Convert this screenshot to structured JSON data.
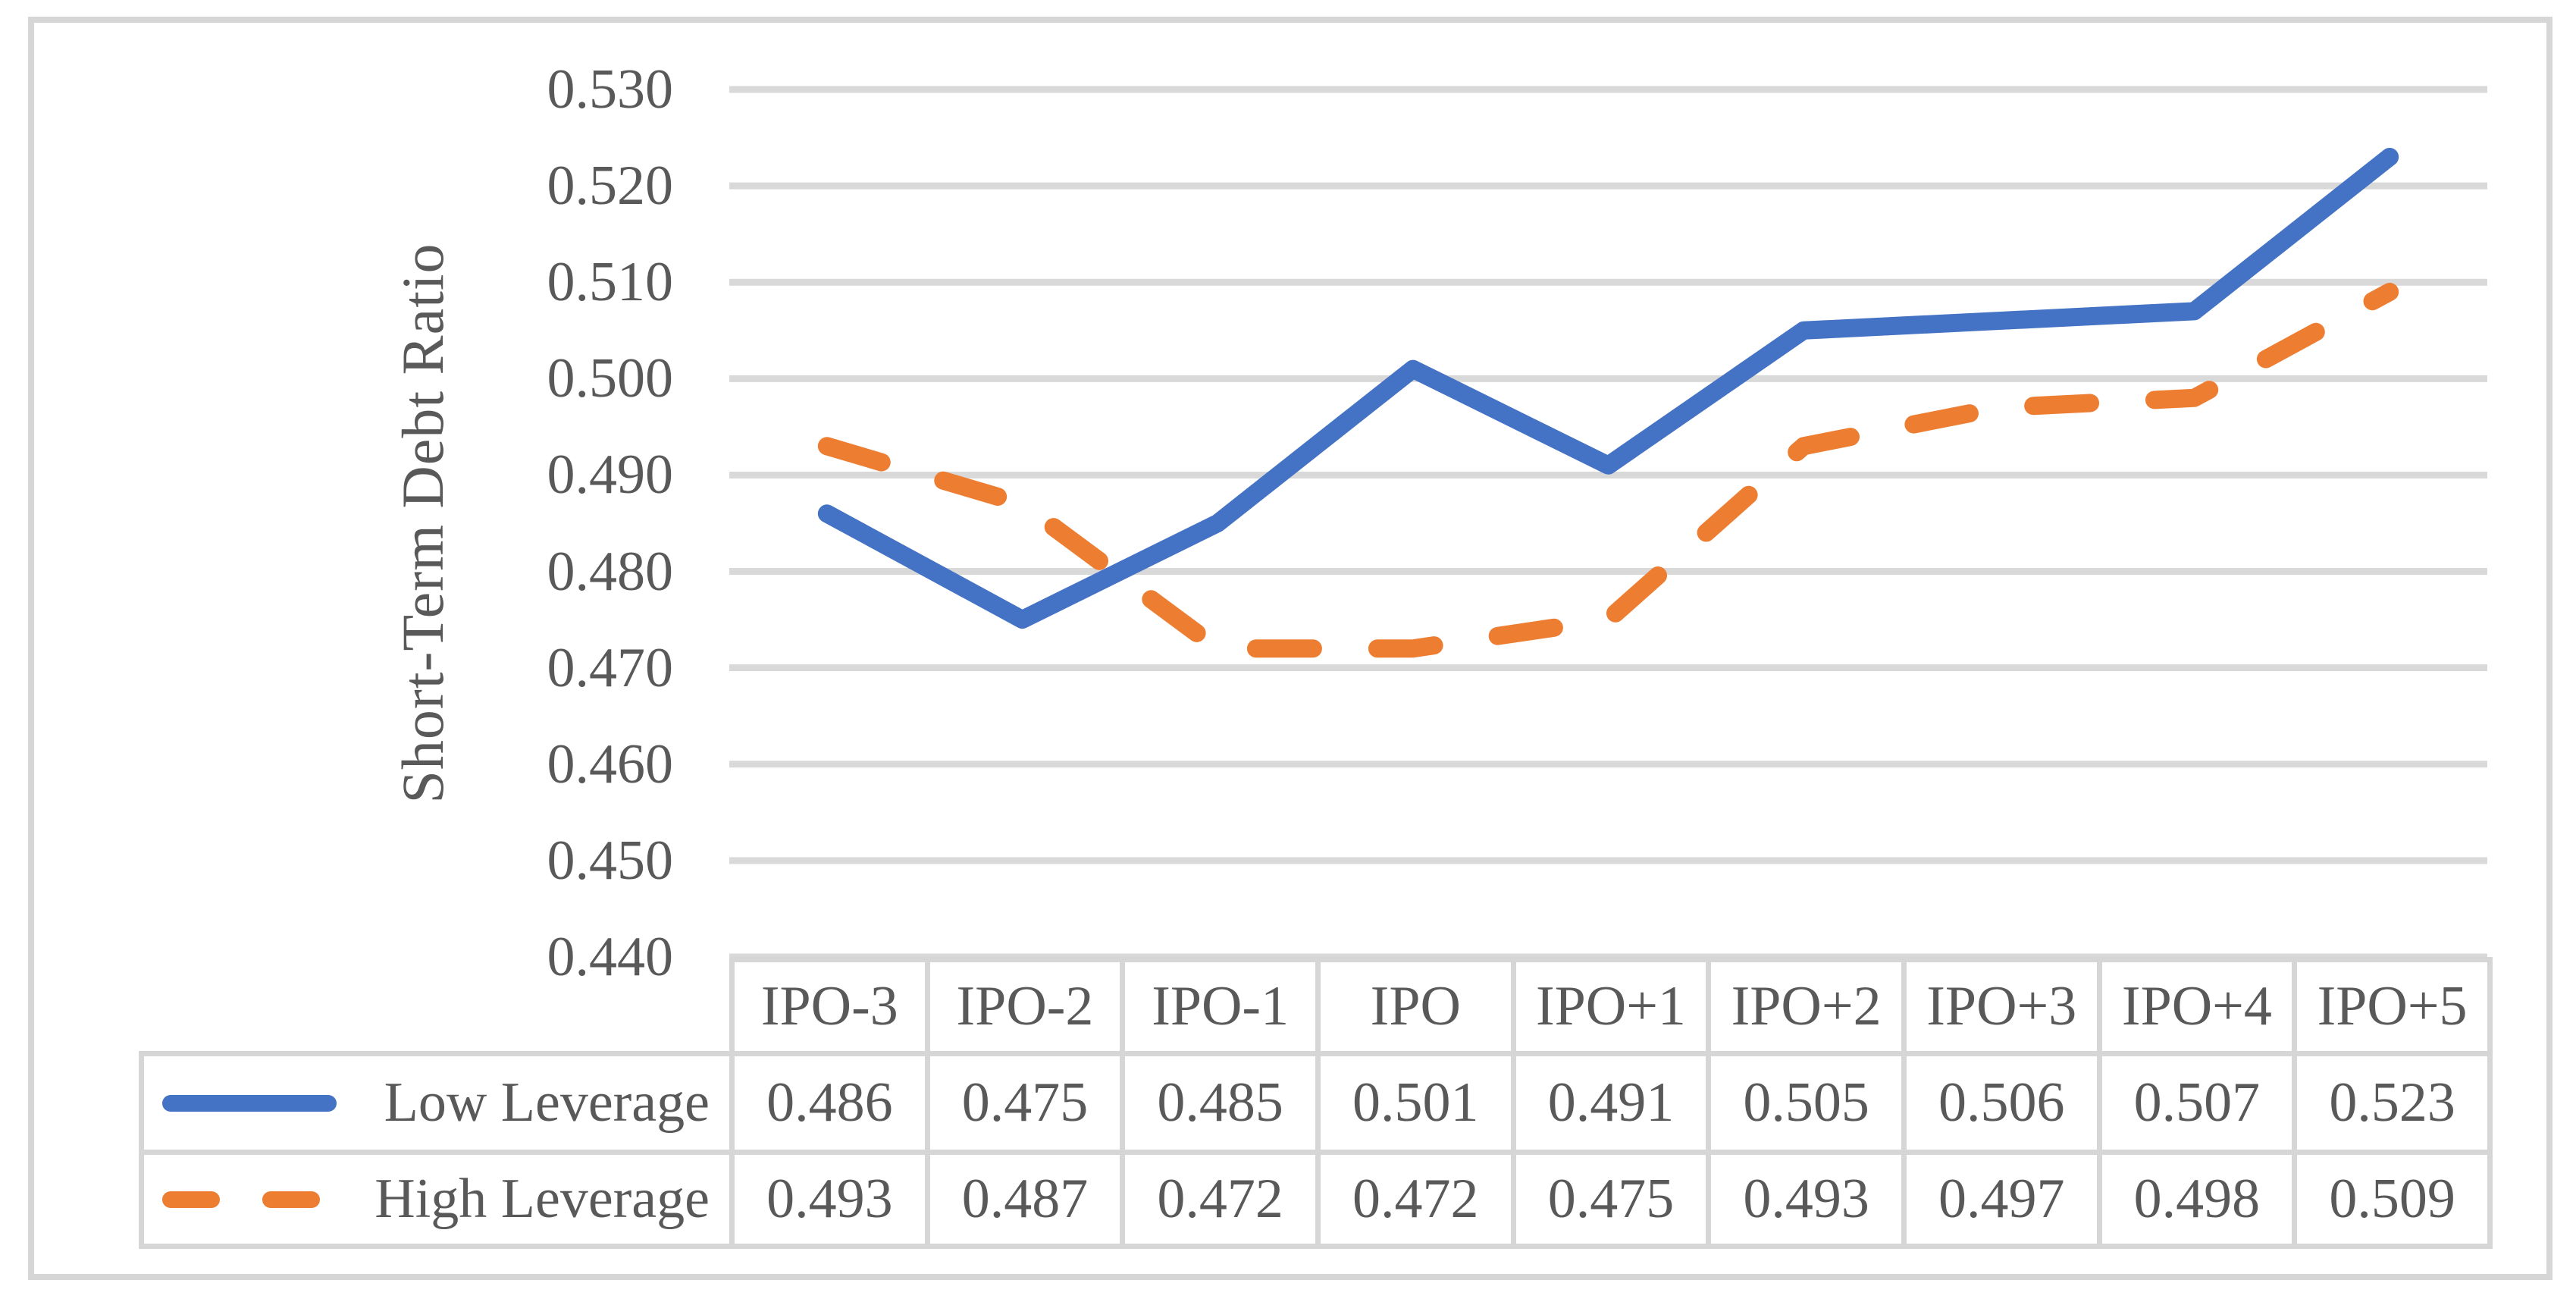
{
  "chart_data": {
    "type": "line",
    "title": "",
    "xlabel": "",
    "ylabel": "Short-Term Debt Ratio",
    "categories": [
      "IPO-3",
      "IPO-2",
      "IPO-1",
      "IPO",
      "IPO+1",
      "IPO+2",
      "IPO+3",
      "IPO+4",
      "IPO+5"
    ],
    "series": [
      {
        "name": "Low Leverage",
        "style": "solid",
        "color": "#4472C4",
        "values": [
          0.486,
          0.475,
          0.485,
          0.501,
          0.491,
          0.505,
          0.506,
          0.507,
          0.523
        ]
      },
      {
        "name": "High Leverage",
        "style": "dashed",
        "color": "#ED7D31",
        "values": [
          0.493,
          0.487,
          0.472,
          0.472,
          0.475,
          0.493,
          0.497,
          0.498,
          0.509
        ]
      }
    ],
    "y_axis": {
      "min": 0.44,
      "max": 0.53,
      "step": 0.01,
      "tick_labels": [
        "0.530",
        "0.520",
        "0.510",
        "0.500",
        "0.490",
        "0.480",
        "0.470",
        "0.460",
        "0.450",
        "0.440"
      ]
    },
    "grid": true,
    "legend_position": "data-table-left",
    "data_table_shown": true,
    "colors": {
      "gridline": "#D9D9D9",
      "border": "#D6D6D6",
      "text": "#595959",
      "background": "#FFFFFF"
    }
  }
}
